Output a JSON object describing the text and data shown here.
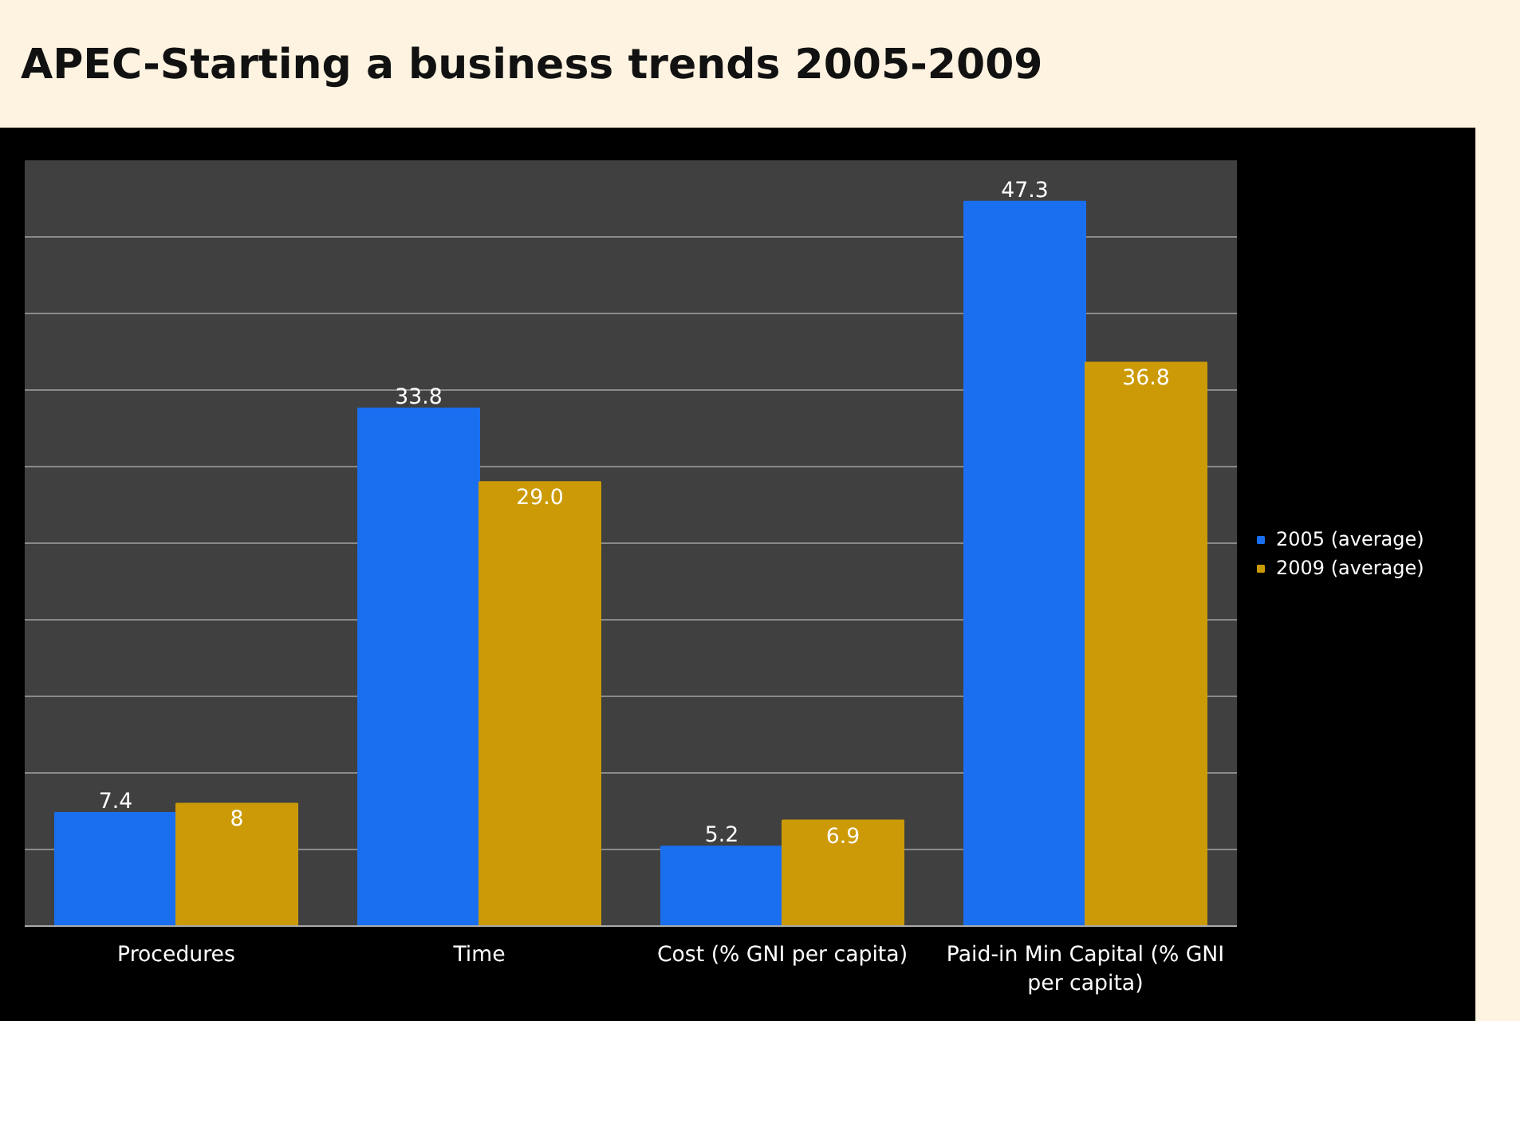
{
  "chart_data": {
    "type": "bar",
    "title": "APEC-Starting a business trends 2005-2009",
    "categories": [
      "Procedures",
      "Time",
      "Cost (% GNI per capita)",
      "Paid-in Min Capital (% GNI per capita)"
    ],
    "series": [
      {
        "name": "2005 (average)",
        "color": "#1a6ff0",
        "values": [
          7.4,
          33.8,
          5.2,
          47.3
        ],
        "value_labels": [
          "7.4",
          "33.8",
          "5.2",
          "47.3"
        ]
      },
      {
        "name": "2009 (average)",
        "color": "#cc9a06",
        "values": [
          8,
          29.0,
          6.9,
          36.8
        ],
        "value_labels": [
          "8",
          "29.0",
          "6.9",
          "36.8"
        ]
      }
    ],
    "ylim": [
      0,
      50
    ],
    "yticks": [
      {
        "value": 0,
        "label": null
      },
      {
        "value": 5,
        "label": null
      },
      {
        "value": 10,
        "label": null
      },
      {
        "value": 15,
        "label": null
      },
      {
        "value": 20,
        "label": null
      },
      {
        "value": 25,
        "label": null
      },
      {
        "value": 30,
        "label": null
      },
      {
        "value": 35,
        "label": null
      },
      {
        "value": 40,
        "label": null
      },
      {
        "value": 45,
        "label": null
      },
      {
        "value": 50,
        "label": null
      }
    ],
    "tick_labels": "x",
    "grid": "y",
    "legend": "right"
  }
}
